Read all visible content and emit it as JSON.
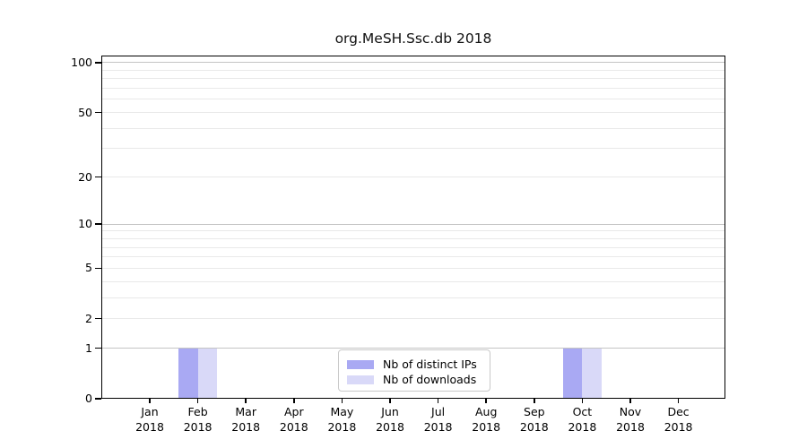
{
  "chart_data": {
    "type": "bar",
    "title": "org.MeSH.Ssc.db 2018",
    "categories": [
      "Jan",
      "Feb",
      "Mar",
      "Apr",
      "May",
      "Jun",
      "Jul",
      "Aug",
      "Sep",
      "Oct",
      "Nov",
      "Dec"
    ],
    "x_tick_year": "2018",
    "series": [
      {
        "name": "Nb of distinct IPs",
        "color": "#a9a9f3",
        "values": [
          0,
          1,
          0,
          0,
          0,
          0,
          0,
          0,
          0,
          1,
          0,
          0
        ]
      },
      {
        "name": "Nb of downloads",
        "color": "#d9d9f8",
        "values": [
          0,
          1,
          0,
          0,
          0,
          0,
          0,
          0,
          0,
          1,
          0,
          0
        ]
      }
    ],
    "y_axis": {
      "scale": "log1p",
      "labeled_ticks": [
        0,
        1,
        2,
        5,
        10,
        20,
        50,
        100
      ],
      "decade_gridlines": [
        1,
        10,
        100
      ],
      "minor_gridlines": [
        2,
        3,
        4,
        5,
        6,
        7,
        8,
        9,
        20,
        30,
        40,
        50,
        60,
        70,
        80,
        90
      ],
      "ylim": [
        0,
        110
      ]
    },
    "legend_position": "bottom-center",
    "grid": true
  },
  "colors": {
    "decade_grid": "#c4c4c4",
    "minor_grid": "#e9e9e9",
    "axis": "#000000",
    "background": "#ffffff",
    "legend_border": "#c9c9c9"
  }
}
